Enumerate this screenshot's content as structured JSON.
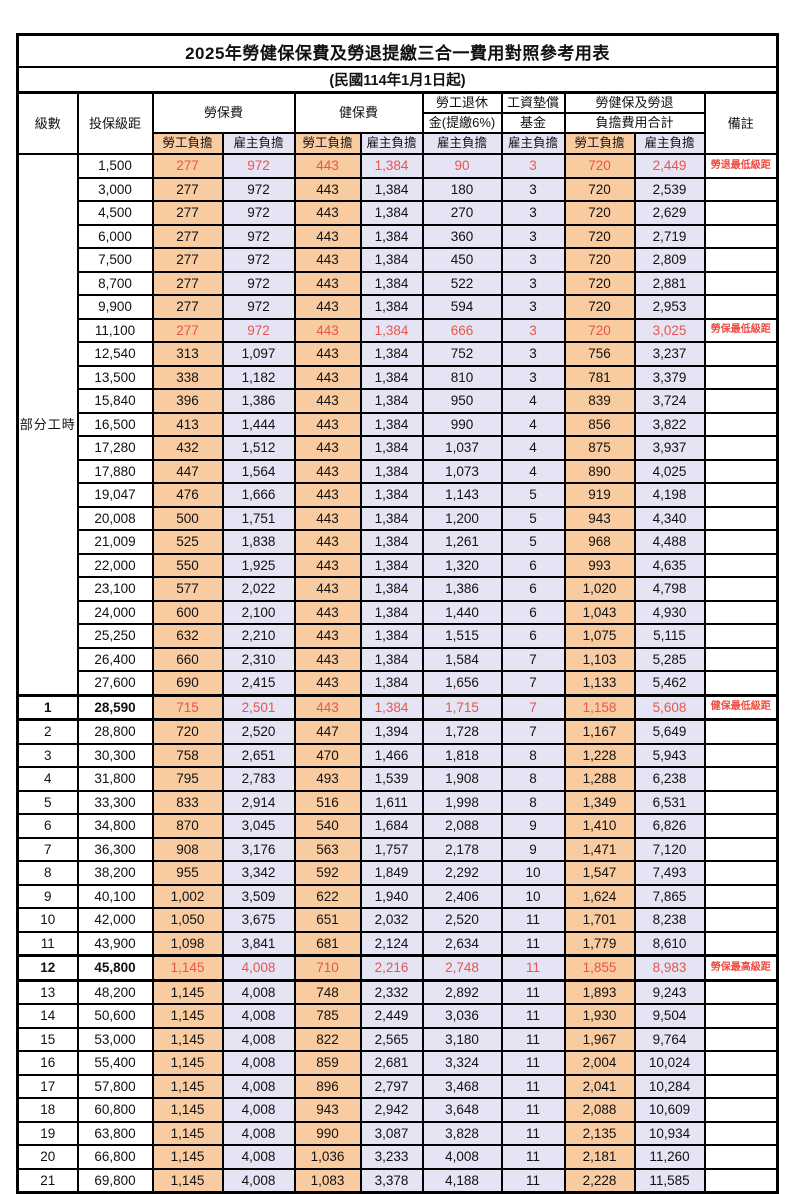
{
  "title": "2025年勞健保保費及勞退提繳三合一費用對照參考用表",
  "subtitle": "(民國114年1月1日起)",
  "colors": {
    "employee_bg": "#F9CBA0",
    "employer_bg": "#E4E4F4",
    "highlight_text": "#E8554C",
    "border": "#000000"
  },
  "header": {
    "level": "級數",
    "insured_bracket": "投保級距",
    "labor_fee": "勞保費",
    "health_fee": "健保費",
    "pension_line1": "勞工退休",
    "pension_line2": "金(提繳6%)",
    "wage_fund_line1": "工資墊償",
    "wage_fund_line2": "基金",
    "total_line1": "勞健保及勞退",
    "total_line2": "負擔費用合計",
    "note": "備註",
    "employee_share": "勞工負擔",
    "employer_share": "雇主負擔"
  },
  "part_time": {
    "label": "部分工時",
    "span": 23
  },
  "rows": [
    {
      "lv": "",
      "br": "1,500",
      "v": [
        "277",
        "972",
        "443",
        "1,384",
        "90",
        "3",
        "720",
        "2,449"
      ],
      "note": "勞退最低級距",
      "red": true
    },
    {
      "lv": "",
      "br": "3,000",
      "v": [
        "277",
        "972",
        "443",
        "1,384",
        "180",
        "3",
        "720",
        "2,539"
      ],
      "note": ""
    },
    {
      "lv": "",
      "br": "4,500",
      "v": [
        "277",
        "972",
        "443",
        "1,384",
        "270",
        "3",
        "720",
        "2,629"
      ],
      "note": ""
    },
    {
      "lv": "",
      "br": "6,000",
      "v": [
        "277",
        "972",
        "443",
        "1,384",
        "360",
        "3",
        "720",
        "2,719"
      ],
      "note": ""
    },
    {
      "lv": "",
      "br": "7,500",
      "v": [
        "277",
        "972",
        "443",
        "1,384",
        "450",
        "3",
        "720",
        "2,809"
      ],
      "note": ""
    },
    {
      "lv": "",
      "br": "8,700",
      "v": [
        "277",
        "972",
        "443",
        "1,384",
        "522",
        "3",
        "720",
        "2,881"
      ],
      "note": ""
    },
    {
      "lv": "",
      "br": "9,900",
      "v": [
        "277",
        "972",
        "443",
        "1,384",
        "594",
        "3",
        "720",
        "2,953"
      ],
      "note": ""
    },
    {
      "lv": "",
      "br": "11,100",
      "v": [
        "277",
        "972",
        "443",
        "1,384",
        "666",
        "3",
        "720",
        "3,025"
      ],
      "note": "勞保最低級距",
      "red": true
    },
    {
      "lv": "",
      "br": "12,540",
      "v": [
        "313",
        "1,097",
        "443",
        "1,384",
        "752",
        "3",
        "756",
        "3,237"
      ],
      "note": ""
    },
    {
      "lv": "",
      "br": "13,500",
      "v": [
        "338",
        "1,182",
        "443",
        "1,384",
        "810",
        "3",
        "781",
        "3,379"
      ],
      "note": ""
    },
    {
      "lv": "",
      "br": "15,840",
      "v": [
        "396",
        "1,386",
        "443",
        "1,384",
        "950",
        "4",
        "839",
        "3,724"
      ],
      "note": ""
    },
    {
      "lv": "",
      "br": "16,500",
      "v": [
        "413",
        "1,444",
        "443",
        "1,384",
        "990",
        "4",
        "856",
        "3,822"
      ],
      "note": ""
    },
    {
      "lv": "",
      "br": "17,280",
      "v": [
        "432",
        "1,512",
        "443",
        "1,384",
        "1,037",
        "4",
        "875",
        "3,937"
      ],
      "note": ""
    },
    {
      "lv": "",
      "br": "17,880",
      "v": [
        "447",
        "1,564",
        "443",
        "1,384",
        "1,073",
        "4",
        "890",
        "4,025"
      ],
      "note": ""
    },
    {
      "lv": "",
      "br": "19,047",
      "v": [
        "476",
        "1,666",
        "443",
        "1,384",
        "1,143",
        "5",
        "919",
        "4,198"
      ],
      "note": ""
    },
    {
      "lv": "",
      "br": "20,008",
      "v": [
        "500",
        "1,751",
        "443",
        "1,384",
        "1,200",
        "5",
        "943",
        "4,340"
      ],
      "note": ""
    },
    {
      "lv": "",
      "br": "21,009",
      "v": [
        "525",
        "1,838",
        "443",
        "1,384",
        "1,261",
        "5",
        "968",
        "4,488"
      ],
      "note": ""
    },
    {
      "lv": "",
      "br": "22,000",
      "v": [
        "550",
        "1,925",
        "443",
        "1,384",
        "1,320",
        "6",
        "993",
        "4,635"
      ],
      "note": ""
    },
    {
      "lv": "",
      "br": "23,100",
      "v": [
        "577",
        "2,022",
        "443",
        "1,384",
        "1,386",
        "6",
        "1,020",
        "4,798"
      ],
      "note": ""
    },
    {
      "lv": "",
      "br": "24,000",
      "v": [
        "600",
        "2,100",
        "443",
        "1,384",
        "1,440",
        "6",
        "1,043",
        "4,930"
      ],
      "note": ""
    },
    {
      "lv": "",
      "br": "25,250",
      "v": [
        "632",
        "2,210",
        "443",
        "1,384",
        "1,515",
        "6",
        "1,075",
        "5,115"
      ],
      "note": ""
    },
    {
      "lv": "",
      "br": "26,400",
      "v": [
        "660",
        "2,310",
        "443",
        "1,384",
        "1,584",
        "7",
        "1,103",
        "5,285"
      ],
      "note": ""
    },
    {
      "lv": "",
      "br": "27,600",
      "v": [
        "690",
        "2,415",
        "443",
        "1,384",
        "1,656",
        "7",
        "1,133",
        "5,462"
      ],
      "note": ""
    },
    {
      "lv": "1",
      "br": "28,590",
      "v": [
        "715",
        "2,501",
        "443",
        "1,384",
        "1,715",
        "7",
        "1,158",
        "5,608"
      ],
      "note": "健保最低級距",
      "red": true,
      "b": true,
      "sep": true
    },
    {
      "lv": "2",
      "br": "28,800",
      "v": [
        "720",
        "2,520",
        "447",
        "1,394",
        "1,728",
        "7",
        "1,167",
        "5,649"
      ],
      "note": ""
    },
    {
      "lv": "3",
      "br": "30,300",
      "v": [
        "758",
        "2,651",
        "470",
        "1,466",
        "1,818",
        "8",
        "1,228",
        "5,943"
      ],
      "note": ""
    },
    {
      "lv": "4",
      "br": "31,800",
      "v": [
        "795",
        "2,783",
        "493",
        "1,539",
        "1,908",
        "8",
        "1,288",
        "6,238"
      ],
      "note": ""
    },
    {
      "lv": "5",
      "br": "33,300",
      "v": [
        "833",
        "2,914",
        "516",
        "1,611",
        "1,998",
        "8",
        "1,349",
        "6,531"
      ],
      "note": ""
    },
    {
      "lv": "6",
      "br": "34,800",
      "v": [
        "870",
        "3,045",
        "540",
        "1,684",
        "2,088",
        "9",
        "1,410",
        "6,826"
      ],
      "note": ""
    },
    {
      "lv": "7",
      "br": "36,300",
      "v": [
        "908",
        "3,176",
        "563",
        "1,757",
        "2,178",
        "9",
        "1,471",
        "7,120"
      ],
      "note": ""
    },
    {
      "lv": "8",
      "br": "38,200",
      "v": [
        "955",
        "3,342",
        "592",
        "1,849",
        "2,292",
        "10",
        "1,547",
        "7,493"
      ],
      "note": ""
    },
    {
      "lv": "9",
      "br": "40,100",
      "v": [
        "1,002",
        "3,509",
        "622",
        "1,940",
        "2,406",
        "10",
        "1,624",
        "7,865"
      ],
      "note": ""
    },
    {
      "lv": "10",
      "br": "42,000",
      "v": [
        "1,050",
        "3,675",
        "651",
        "2,032",
        "2,520",
        "11",
        "1,701",
        "8,238"
      ],
      "note": ""
    },
    {
      "lv": "11",
      "br": "43,900",
      "v": [
        "1,098",
        "3,841",
        "681",
        "2,124",
        "2,634",
        "11",
        "1,779",
        "8,610"
      ],
      "note": ""
    },
    {
      "lv": "12",
      "br": "45,800",
      "v": [
        "1,145",
        "4,008",
        "710",
        "2,216",
        "2,748",
        "11",
        "1,855",
        "8,983"
      ],
      "note": "勞保最高級距",
      "red": true,
      "b": true,
      "sep": true
    },
    {
      "lv": "13",
      "br": "48,200",
      "v": [
        "1,145",
        "4,008",
        "748",
        "2,332",
        "2,892",
        "11",
        "1,893",
        "9,243"
      ],
      "note": ""
    },
    {
      "lv": "14",
      "br": "50,600",
      "v": [
        "1,145",
        "4,008",
        "785",
        "2,449",
        "3,036",
        "11",
        "1,930",
        "9,504"
      ],
      "note": ""
    },
    {
      "lv": "15",
      "br": "53,000",
      "v": [
        "1,145",
        "4,008",
        "822",
        "2,565",
        "3,180",
        "11",
        "1,967",
        "9,764"
      ],
      "note": ""
    },
    {
      "lv": "16",
      "br": "55,400",
      "v": [
        "1,145",
        "4,008",
        "859",
        "2,681",
        "3,324",
        "11",
        "2,004",
        "10,024"
      ],
      "note": ""
    },
    {
      "lv": "17",
      "br": "57,800",
      "v": [
        "1,145",
        "4,008",
        "896",
        "2,797",
        "3,468",
        "11",
        "2,041",
        "10,284"
      ],
      "note": ""
    },
    {
      "lv": "18",
      "br": "60,800",
      "v": [
        "1,145",
        "4,008",
        "943",
        "2,942",
        "3,648",
        "11",
        "2,088",
        "10,609"
      ],
      "note": ""
    },
    {
      "lv": "19",
      "br": "63,800",
      "v": [
        "1,145",
        "4,008",
        "990",
        "3,087",
        "3,828",
        "11",
        "2,135",
        "10,934"
      ],
      "note": ""
    },
    {
      "lv": "20",
      "br": "66,800",
      "v": [
        "1,145",
        "4,008",
        "1,036",
        "3,233",
        "4,008",
        "11",
        "2,181",
        "11,260"
      ],
      "note": ""
    },
    {
      "lv": "21",
      "br": "69,800",
      "v": [
        "1,145",
        "4,008",
        "1,083",
        "3,378",
        "4,188",
        "11",
        "2,228",
        "11,585"
      ],
      "note": ""
    }
  ]
}
